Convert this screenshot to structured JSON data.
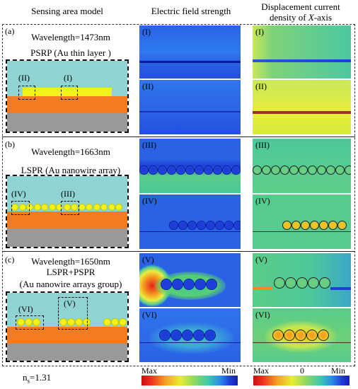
{
  "headers": {
    "col1": "Sensing area model",
    "col2": "Electric field strength",
    "col3_line1": "Displacement current",
    "col3_line2_prefix": "density of ",
    "col3_line2_axis": "X",
    "col3_line2_suffix": "-axis"
  },
  "sections": [
    {
      "tag": "(a)",
      "wavelength": "Wavelength=1473nm",
      "mode": "PSRP (Au thin layer )",
      "boxes": [
        "(II)",
        "(I)"
      ],
      "field_labels": [
        "(I)",
        "(II)"
      ]
    },
    {
      "tag": "(b)",
      "wavelength": "Wavelength=1663nm",
      "mode": "LSPR (Au nanowire array)",
      "boxes": [
        "(IV)",
        "(III)"
      ],
      "field_labels": [
        "(III)",
        "(IV)"
      ]
    },
    {
      "tag": "(c)",
      "wavelength": "Wavelength=1650nm",
      "mode": "LSPR+PSPR",
      "mode2": "(Au nanowire  arrays group)",
      "boxes": [
        "(VI)",
        "(V)"
      ],
      "field_labels": [
        "(V)",
        "(VI)"
      ]
    }
  ],
  "footer": {
    "ns_prefix": "n",
    "ns_sub": "s",
    "ns_value": "=1.31",
    "cb1_max": "Max",
    "cb1_min": "Min",
    "cb2_max": "Max",
    "cb2_mid": "0",
    "cb2_min": "Min"
  },
  "colors": {
    "analyte": "#8fd3d3",
    "gold": "#f2f21a",
    "substrate_orange": "#f47c20",
    "substrate_gray": "#999999",
    "field_blue": "#1e3cd8"
  }
}
